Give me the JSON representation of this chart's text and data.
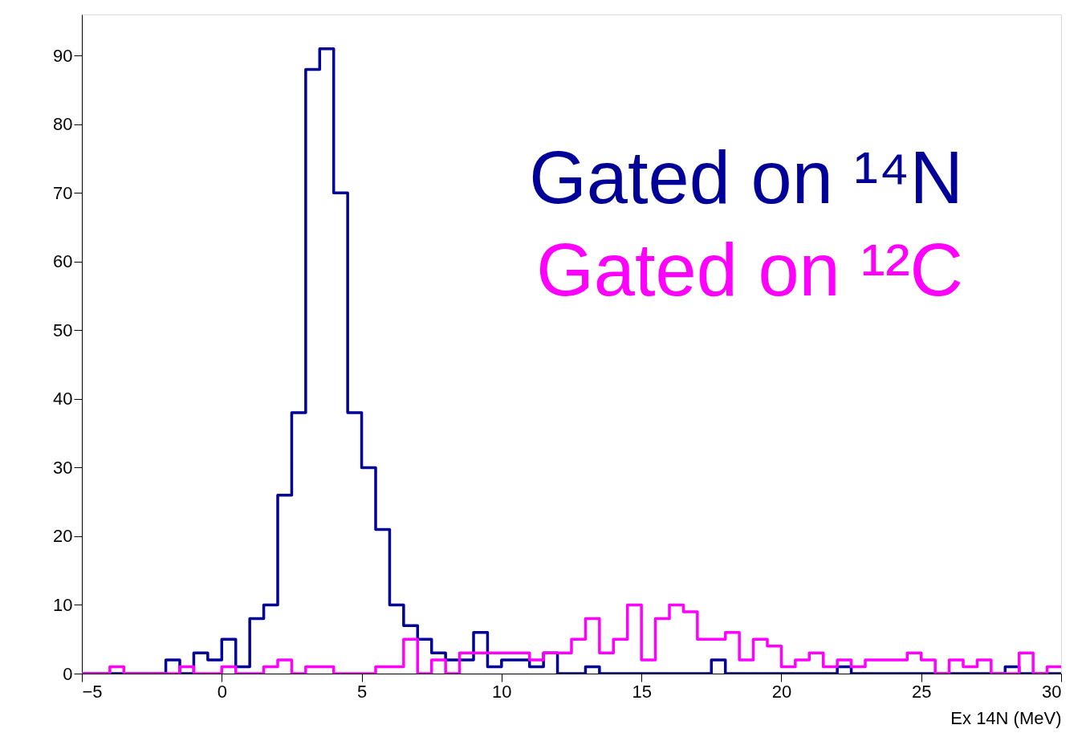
{
  "chart_data": {
    "type": "histogram",
    "xlabel": "Ex 14N (MeV)",
    "bins": [
      -5,
      -4.5,
      -4,
      -3.5,
      -3,
      -2.5,
      -2,
      -1.5,
      -1,
      -0.5,
      0,
      0.5,
      1,
      1.5,
      2,
      2.5,
      3,
      3.5,
      4,
      4.5,
      5,
      5.5,
      6,
      6.5,
      7,
      7.5,
      8,
      8.5,
      9,
      9.5,
      10,
      10.5,
      11,
      11.5,
      12,
      12.5,
      13,
      13.5,
      14,
      14.5,
      15,
      15.5,
      16,
      16.5,
      17,
      17.5,
      18,
      18.5,
      19,
      19.5,
      20,
      20.5,
      21,
      21.5,
      22,
      22.5,
      23,
      23.5,
      24,
      24.5,
      25,
      25.5,
      26,
      26.5,
      27,
      27.5,
      28,
      28.5,
      29,
      29.5,
      30
    ],
    "series": [
      {
        "name": "Gated on ¹⁴N",
        "color": "#000099",
        "values": [
          0,
          0,
          0,
          0,
          0,
          0,
          2,
          0,
          3,
          2,
          5,
          1,
          8,
          10,
          26,
          38,
          88,
          91,
          70,
          38,
          30,
          21,
          10,
          7,
          5,
          3,
          2,
          2,
          6,
          1,
          2,
          2,
          1,
          3,
          0,
          0,
          1,
          0,
          0,
          0,
          0,
          0,
          0,
          0,
          0,
          2,
          0,
          0,
          0,
          0,
          0,
          0,
          0,
          0,
          1,
          0,
          0,
          0,
          0,
          0,
          0,
          0,
          0,
          0,
          0,
          0,
          1,
          0,
          0,
          0
        ]
      },
      {
        "name": "Gated on ¹²C",
        "color": "#ff00ff",
        "values": [
          0,
          0,
          1,
          0,
          0,
          0,
          0,
          1,
          0,
          0,
          1,
          0,
          0,
          1,
          2,
          0,
          1,
          1,
          0,
          0,
          0,
          1,
          1,
          5,
          0,
          2,
          0,
          3,
          3,
          3,
          3,
          3,
          2,
          3,
          3,
          5,
          8,
          3,
          5,
          10,
          2,
          8,
          10,
          9,
          5,
          5,
          6,
          2,
          5,
          4,
          1,
          2,
          3,
          1,
          2,
          1,
          2,
          2,
          2,
          3,
          2,
          0,
          2,
          1,
          2,
          0,
          0,
          3,
          0,
          1
        ]
      }
    ],
    "xlim": [
      -5,
      30
    ],
    "xticks": [
      -5,
      0,
      5,
      10,
      15,
      20,
      25,
      30
    ],
    "ylim": [
      0,
      96
    ],
    "yticks": [
      0,
      10,
      20,
      30,
      40,
      50,
      60,
      70,
      80,
      90
    ],
    "grid": false,
    "legend": "top right"
  }
}
